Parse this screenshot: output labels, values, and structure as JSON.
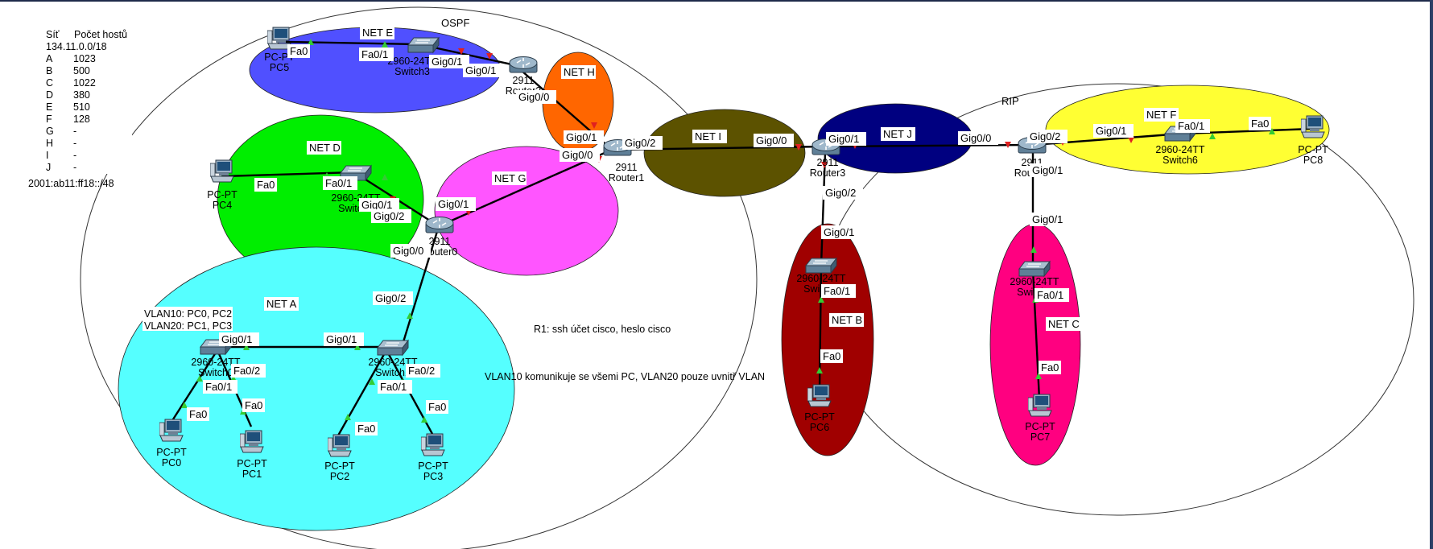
{
  "info_table": {
    "header": [
      "Síť",
      "Počet hostů"
    ],
    "network": "134.11.0.0/18",
    "rows": [
      [
        "A",
        "1023"
      ],
      [
        "B",
        "500"
      ],
      [
        "C",
        "1022"
      ],
      [
        "D",
        "380"
      ],
      [
        "E",
        "510"
      ],
      [
        "F",
        "128"
      ],
      [
        "G",
        "-"
      ],
      [
        "H",
        "-"
      ],
      [
        "I",
        "-"
      ],
      [
        "J",
        "-"
      ]
    ],
    "ipv6": "2001:ab11:ff18::/48"
  },
  "area_labels": {
    "ospf": "OSPF",
    "rip": "RIP"
  },
  "notes": {
    "vlan10": "VLAN10: PC0, PC2",
    "vlan20": "VLAN20: PC1, PC3",
    "r1_ssh": "R1: ssh účet cisco, heslo cisco",
    "vlan_comm": "VLAN10 komunikuje se všemi PC, VLAN20 pouze uvnitř VLAN"
  },
  "networks": {
    "A": {
      "label": "NET A",
      "color": "#55ffff"
    },
    "B": {
      "label": "NET B",
      "color": "#a00000"
    },
    "C": {
      "label": "NET C",
      "color": "#ff0080"
    },
    "D": {
      "label": "NET D",
      "color": "#00ee00"
    },
    "E": {
      "label": "NET E",
      "color": "#5050ff"
    },
    "F": {
      "label": "NET F",
      "color": "#ffff33"
    },
    "G": {
      "label": "NET G",
      "color": "#ff55ff"
    },
    "H": {
      "label": "NET H",
      "color": "#ff6600"
    },
    "I": {
      "label": "NET I",
      "color": "#5c5200"
    },
    "J": {
      "label": "NET J",
      "color": "#000080"
    }
  },
  "devices": {
    "pc0": {
      "line1": "PC-PT",
      "line2": "PC0"
    },
    "pc1": {
      "line1": "PC-PT",
      "line2": "PC1"
    },
    "pc2": {
      "line1": "PC-PT",
      "line2": "PC2"
    },
    "pc3": {
      "line1": "PC-PT",
      "line2": "PC3"
    },
    "pc4": {
      "line1": "PC-PT",
      "line2": "PC4"
    },
    "pc5": {
      "line1": "PC-PT",
      "line2": "PC5"
    },
    "pc6": {
      "line1": "PC-PT",
      "line2": "PC6"
    },
    "pc7": {
      "line1": "PC-PT",
      "line2": "PC7"
    },
    "pc8": {
      "line1": "PC-PT",
      "line2": "PC8"
    },
    "router0": {
      "line1": "2911",
      "line2": "Router0"
    },
    "router1": {
      "line1": "2911",
      "line2": "Router1"
    },
    "router2": {
      "line1": "2911",
      "line2": "Router2"
    },
    "router3": {
      "line1": "2911",
      "line2": "Router3"
    },
    "router4": {
      "line1": "2911",
      "line2": "Router4"
    },
    "switch0": {
      "line1": "2960-24TT",
      "line2": "Switch0"
    },
    "switch1": {
      "line1": "2960-24TT",
      "line2": "Switch1"
    },
    "switch2": {
      "line1": "2960-24TT",
      "line2": "Switch2"
    },
    "switch3": {
      "line1": "2960-24TT",
      "line2": "Switch3"
    },
    "switch4": {
      "line1": "2960-24TT",
      "line2": "Switch4"
    },
    "switch5": {
      "line1": "2960-24TT",
      "line2": "Switch5"
    },
    "switch6": {
      "line1": "2960-24TT",
      "line2": "Switch6"
    }
  },
  "ports": {
    "fa0": "Fa0",
    "fa0_1": "Fa0/1",
    "fa0_2": "Fa0/2",
    "gig0_0": "Gig0/0",
    "gig0_1": "Gig0/1",
    "gig0_2": "Gig0/2"
  },
  "colors": {
    "link": "#000000",
    "port_up": "#33cc33",
    "port_down": "#e02020"
  }
}
